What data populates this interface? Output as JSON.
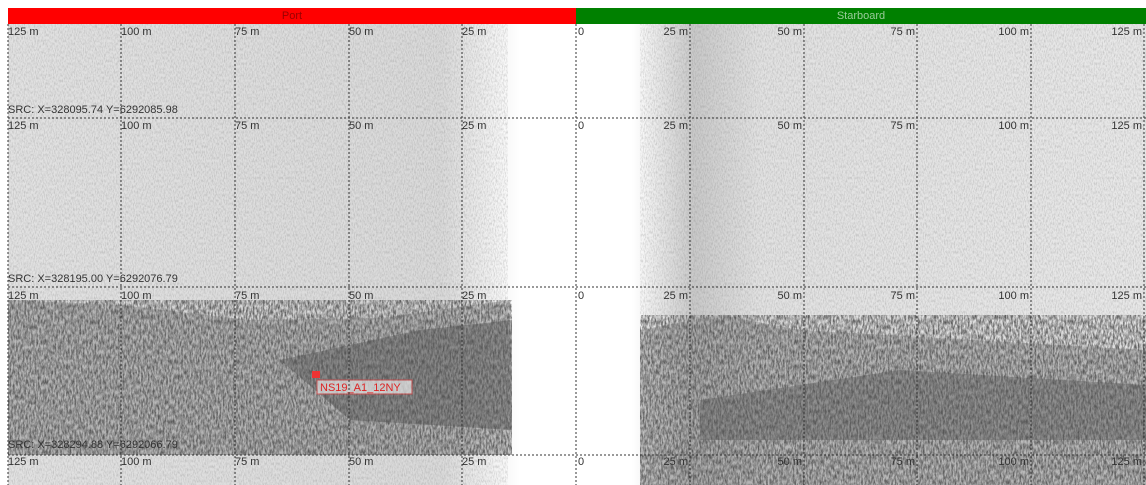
{
  "header": {
    "port": "Port",
    "starboard": "Starboard"
  },
  "port_ranges": [
    "125 m",
    "100 m",
    "75 m",
    "50 m",
    "25 m"
  ],
  "starboard_ranges": [
    "0",
    "25 m",
    "50 m",
    "75 m",
    "100 m",
    "125 m"
  ],
  "src_labels": [
    "SRC: X=328095.74 Y=6292085.98",
    "SRC: X=328195.00 Y=6292076.79",
    "SRC: X=328294.88 Y=6292066.79"
  ],
  "target": "NS19_A1_12NY"
}
